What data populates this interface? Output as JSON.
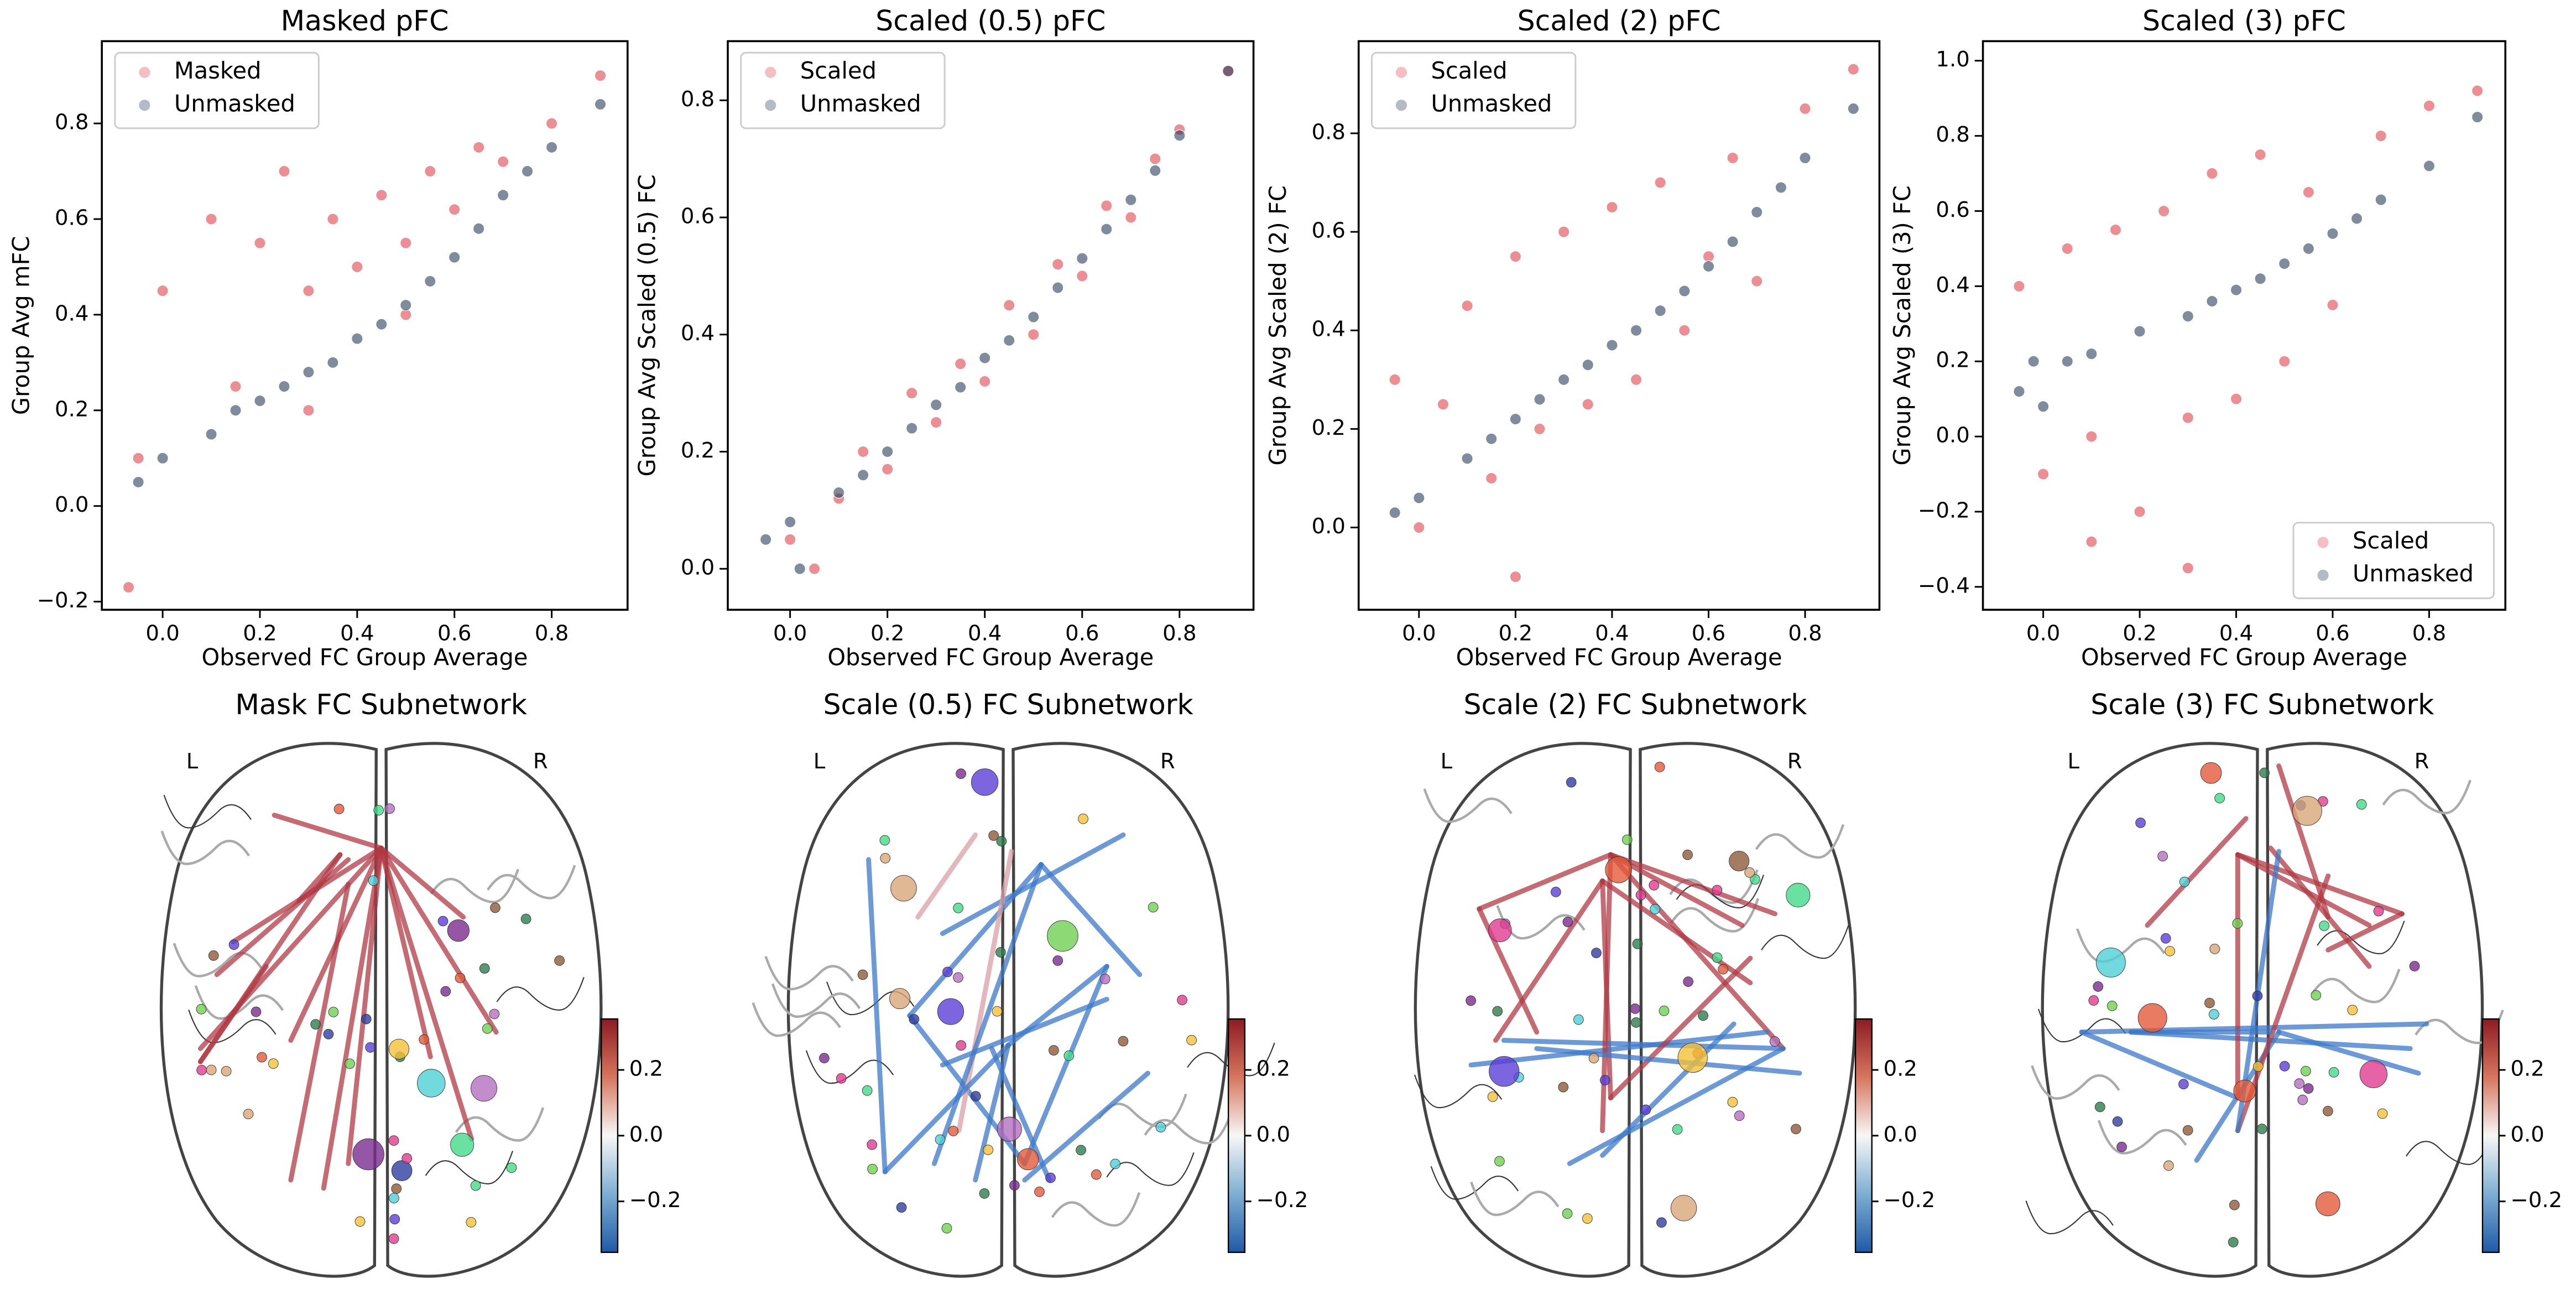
{
  "chart_data": [
    {
      "type": "scatter",
      "title": "Masked pFC",
      "xlabel": "Observed FC Group Average",
      "ylabel": "Group Avg mFC",
      "xlim": [
        -0.125,
        0.956
      ],
      "ylim": [
        -0.217,
        0.972
      ],
      "xticks": [
        {
          "value": 0,
          "label": "0.0"
        },
        0.2,
        0.4,
        0.6,
        0.8
      ],
      "yticks": [
        {
          "value": -0.2,
          "label": "−0.2"
        },
        {
          "value": 0,
          "label": "0.0"
        },
        0.2,
        0.4,
        0.6,
        0.8
      ],
      "legend": "upper left",
      "series": [
        {
          "name": "Masked",
          "color": "#e0454f",
          "x": [
            0.0,
            -0.05,
            0.1,
            0.2,
            0.25,
            0.3,
            0.35,
            0.4,
            0.45,
            0.5,
            0.55,
            0.6,
            0.65,
            0.7,
            0.8,
            0.9,
            0.15,
            0.3,
            0.5,
            -0.07
          ],
          "values": [
            0.45,
            0.1,
            0.6,
            0.55,
            0.7,
            0.45,
            0.6,
            0.5,
            0.65,
            0.55,
            0.7,
            0.62,
            0.75,
            0.72,
            0.8,
            0.9,
            0.25,
            0.2,
            0.4,
            -0.17
          ]
        },
        {
          "name": "Unmasked",
          "color": "#2b3d5b",
          "x": [
            -0.05,
            0.0,
            0.1,
            0.15,
            0.2,
            0.25,
            0.3,
            0.35,
            0.4,
            0.45,
            0.5,
            0.55,
            0.6,
            0.65,
            0.7,
            0.75,
            0.8,
            0.9
          ],
          "values": [
            0.05,
            0.1,
            0.15,
            0.2,
            0.22,
            0.25,
            0.28,
            0.3,
            0.35,
            0.38,
            0.42,
            0.47,
            0.52,
            0.58,
            0.65,
            0.7,
            0.75,
            0.84
          ]
        }
      ]
    },
    {
      "type": "scatter",
      "title": "Scaled (0.5) pFC",
      "xlabel": "Observed FC Group Average",
      "ylabel": "Group Avg Scaled (0.5) FC",
      "xlim": [
        -0.128,
        0.952
      ],
      "ylim": [
        -0.07,
        0.901
      ],
      "xticks": [
        {
          "value": 0,
          "label": "0.0"
        },
        0.2,
        0.4,
        0.6,
        0.8
      ],
      "yticks": [
        {
          "value": 0,
          "label": "0.0"
        },
        0.2,
        0.4,
        0.6,
        0.8
      ],
      "legend": "upper left",
      "series": [
        {
          "name": "Scaled",
          "color": "#e0454f",
          "x": [
            0.0,
            0.05,
            0.1,
            0.15,
            0.2,
            0.25,
            0.3,
            0.35,
            0.4,
            0.45,
            0.5,
            0.55,
            0.6,
            0.65,
            0.7,
            0.75,
            0.8,
            0.9
          ],
          "values": [
            0.05,
            0.0,
            0.12,
            0.2,
            0.17,
            0.3,
            0.25,
            0.35,
            0.32,
            0.45,
            0.4,
            0.52,
            0.5,
            0.62,
            0.6,
            0.7,
            0.75,
            0.85
          ]
        },
        {
          "name": "Unmasked",
          "color": "#2b3d5b",
          "x": [
            -0.05,
            0.0,
            0.1,
            0.15,
            0.2,
            0.25,
            0.3,
            0.35,
            0.4,
            0.45,
            0.5,
            0.55,
            0.6,
            0.65,
            0.7,
            0.75,
            0.8,
            0.9,
            0.02
          ],
          "values": [
            0.05,
            0.08,
            0.13,
            0.16,
            0.2,
            0.24,
            0.28,
            0.31,
            0.36,
            0.39,
            0.43,
            0.48,
            0.53,
            0.58,
            0.63,
            0.68,
            0.74,
            0.85,
            0.0
          ]
        }
      ]
    },
    {
      "type": "scatter",
      "title": "Scaled (2) pFC",
      "xlabel": "Observed FC Group Average",
      "ylabel": "Group Avg Scaled (2) FC",
      "xlim": [
        -0.125,
        0.954
      ],
      "ylim": [
        -0.167,
        0.987
      ],
      "xticks": [
        {
          "value": 0,
          "label": "0.0"
        },
        0.2,
        0.4,
        0.6,
        0.8
      ],
      "yticks": [
        {
          "value": 0,
          "label": "0.0"
        },
        0.2,
        0.4,
        0.6,
        0.8
      ],
      "legend": "upper left",
      "series": [
        {
          "name": "Scaled",
          "color": "#e0454f",
          "x": [
            -0.05,
            0.0,
            0.05,
            0.1,
            0.15,
            0.2,
            0.25,
            0.3,
            0.35,
            0.4,
            0.45,
            0.5,
            0.55,
            0.6,
            0.65,
            0.7,
            0.8,
            0.9,
            0.2
          ],
          "values": [
            0.3,
            0.0,
            0.25,
            0.45,
            0.1,
            0.55,
            0.2,
            0.6,
            0.25,
            0.65,
            0.3,
            0.7,
            0.4,
            0.55,
            0.75,
            0.5,
            0.85,
            0.93,
            -0.1
          ]
        },
        {
          "name": "Unmasked",
          "color": "#2b3d5b",
          "x": [
            -0.05,
            0.0,
            0.1,
            0.15,
            0.2,
            0.25,
            0.3,
            0.35,
            0.4,
            0.45,
            0.5,
            0.55,
            0.6,
            0.65,
            0.7,
            0.75,
            0.8,
            0.9
          ],
          "values": [
            0.03,
            0.06,
            0.14,
            0.18,
            0.22,
            0.26,
            0.3,
            0.33,
            0.37,
            0.4,
            0.44,
            0.48,
            0.53,
            0.58,
            0.64,
            0.69,
            0.75,
            0.85
          ]
        }
      ]
    },
    {
      "type": "scatter",
      "title": "Scaled (3) pFC",
      "xlabel": "Observed FC Group Average",
      "ylabel": "Group Avg Scaled (3) FC",
      "xlim": [
        -0.125,
        0.958
      ],
      "ylim": [
        -0.461,
        1.052
      ],
      "xticks": [
        {
          "value": 0,
          "label": "0.0"
        },
        0.2,
        0.4,
        0.6,
        0.8
      ],
      "yticks": [
        {
          "value": -0.4,
          "label": "−0.4"
        },
        {
          "value": -0.2,
          "label": "−0.2"
        },
        {
          "value": 0,
          "label": "0.0"
        },
        0.2,
        0.4,
        0.6,
        0.8,
        {
          "value": 1,
          "label": "1.0"
        }
      ],
      "legend": "lower right",
      "series": [
        {
          "name": "Scaled",
          "color": "#e0454f",
          "x": [
            -0.05,
            0.0,
            0.05,
            0.1,
            0.15,
            0.2,
            0.25,
            0.3,
            0.35,
            0.4,
            0.45,
            0.5,
            0.55,
            0.6,
            0.7,
            0.8,
            0.9,
            0.3,
            0.1
          ],
          "values": [
            0.4,
            -0.1,
            0.5,
            0.0,
            0.55,
            -0.2,
            0.6,
            0.05,
            0.7,
            0.1,
            0.75,
            0.2,
            0.65,
            0.35,
            0.8,
            0.88,
            0.92,
            -0.35,
            -0.28
          ]
        },
        {
          "name": "Unmasked",
          "color": "#2b3d5b",
          "x": [
            -0.05,
            0.0,
            0.05,
            0.1,
            0.2,
            0.3,
            0.35,
            0.4,
            0.45,
            0.5,
            0.55,
            0.6,
            0.65,
            0.7,
            0.8,
            0.9,
            -0.02
          ],
          "values": [
            0.12,
            0.08,
            0.2,
            0.22,
            0.28,
            0.32,
            0.36,
            0.39,
            0.42,
            0.46,
            0.5,
            0.54,
            0.58,
            0.63,
            0.72,
            0.85,
            0.2
          ]
        }
      ]
    }
  ],
  "brain_panels": [
    {
      "title": "Mask FC Subnetwork",
      "left": "L",
      "right": "R",
      "clim": [
        -0.355,
        0.355
      ],
      "cticks": [
        {
          "value": -0.2,
          "label": "−0.2"
        },
        {
          "value": 0,
          "label": "0.0"
        },
        0.2
      ]
    },
    {
      "title": "Scale (0.5) FC Subnetwork",
      "left": "L",
      "right": "R",
      "clim": [
        -0.355,
        0.355
      ],
      "cticks": [
        {
          "value": -0.2,
          "label": "−0.2"
        },
        {
          "value": 0,
          "label": "0.0"
        },
        0.2
      ]
    },
    {
      "title": "Scale (2) FC Subnetwork",
      "left": "L",
      "right": "R",
      "clim": [
        -0.355,
        0.355
      ],
      "cticks": [
        {
          "value": -0.2,
          "label": "−0.2"
        },
        {
          "value": 0,
          "label": "0.0"
        },
        0.2
      ]
    },
    {
      "title": "Scale (3) FC Subnetwork",
      "left": "L",
      "right": "R",
      "clim": [
        -0.355,
        0.355
      ],
      "cticks": [
        {
          "value": -0.2,
          "label": "−0.2"
        },
        {
          "value": 0,
          "label": "0.0"
        },
        0.2
      ]
    }
  ]
}
